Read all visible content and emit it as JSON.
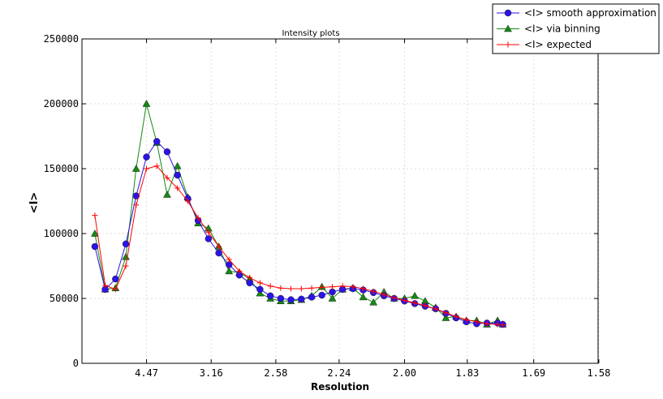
{
  "chart_data": {
    "type": "line",
    "title": "Intensity plots",
    "xlabel": "Resolution",
    "ylabel": "<I>",
    "x_scale": "reciprocal-square (evenly spaced in 1/d^2)",
    "x_ticks": [
      "4.47",
      "3.16",
      "2.58",
      "2.24",
      "2.00",
      "1.83",
      "1.69",
      "1.58"
    ],
    "y_ticks": [
      "0",
      "50000",
      "100000",
      "150000",
      "200000",
      "250000"
    ],
    "ylim": [
      0,
      250000
    ],
    "grid": true,
    "legend_position": "top-right",
    "x": [
      10.0,
      7.454,
      6.202,
      5.423,
      4.88,
      4.472,
      4.152,
      3.892,
      3.676,
      3.492,
      3.333,
      3.194,
      3.071,
      2.962,
      2.863,
      2.774,
      2.692,
      2.617,
      2.548,
      2.485,
      2.425,
      2.37,
      2.319,
      2.27,
      2.225,
      2.182,
      2.142,
      2.104,
      2.067,
      2.033,
      2.0,
      1.969,
      1.939,
      1.91,
      1.883,
      1.857,
      1.832,
      1.808,
      1.785,
      1.762,
      1.751
    ],
    "series": [
      {
        "name": "<I> smooth approximation",
        "color": "#2b13e8",
        "marker": "circle",
        "values": [
          90000,
          57000,
          65000,
          92000,
          129000,
          159000,
          171000,
          163000,
          145000,
          127000,
          110000,
          96000,
          85000,
          76000,
          68000,
          62000,
          57000,
          52000,
          50000,
          49000,
          49500,
          51000,
          52500,
          55000,
          57000,
          57500,
          56500,
          54500,
          52000,
          50000,
          48000,
          46000,
          44000,
          42000,
          38500,
          35000,
          32000,
          30500,
          31000,
          31000,
          30000
        ]
      },
      {
        "name": "<I> via binning",
        "color": "#128a12",
        "marker": "triangle",
        "values": [
          100000,
          57000,
          58000,
          82000,
          150000,
          200000,
          170000,
          130000,
          152000,
          128000,
          108000,
          104000,
          90000,
          71000,
          70000,
          65000,
          54000,
          50000,
          48000,
          48000,
          49000,
          52000,
          59000,
          50000,
          57000,
          58000,
          51000,
          47000,
          55000,
          50000,
          50000,
          52000,
          48000,
          43000,
          35000,
          36000,
          33000,
          33000,
          30000,
          33000,
          30000
        ]
      },
      {
        "name": "<I> expected",
        "color": "#ff0000",
        "marker": "plus",
        "values": [
          114000,
          60000,
          57000,
          75000,
          122000,
          150000,
          152000,
          143000,
          135000,
          125000,
          112000,
          101000,
          90000,
          80000,
          71000,
          66000,
          62000,
          59500,
          58000,
          57500,
          57500,
          58000,
          58500,
          59000,
          59500,
          59000,
          57500,
          55500,
          53000,
          50500,
          48500,
          46500,
          44500,
          42000,
          39000,
          36000,
          33500,
          32000,
          30500,
          30000,
          29500
        ]
      }
    ]
  }
}
